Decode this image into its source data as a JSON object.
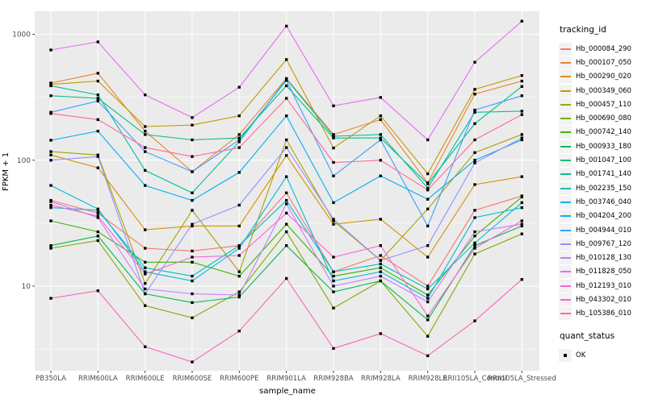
{
  "figure": {
    "y_axis_title": "FPKM + 1",
    "x_axis_title": "sample_name",
    "legend": {
      "tracking_title": "tracking_id",
      "quant_title": "quant_status",
      "quant_items": [
        {
          "label": "OK",
          "marker": "black-square"
        }
      ]
    },
    "colors": {
      "panel_background": "#EBEBEB",
      "grid_major": "#FFFFFF",
      "grid_minor": "#FFFFFF",
      "tick_label": "#4D4D4D",
      "tick_mark": "#333333",
      "marker": "#000000",
      "legend_key_background": "#F2F2F2"
    }
  },
  "chart_data": {
    "type": "line",
    "title": "",
    "xlabel": "sample_name",
    "ylabel": "FPKM + 1",
    "y_scale": "log10",
    "ylim": [
      2.1,
      1520
    ],
    "grid": true,
    "legend_position": "right",
    "y_ticks": [
      {
        "value": 10,
        "label": "10"
      },
      {
        "value": 100,
        "label": "100"
      },
      {
        "value": 1000,
        "label": "1000"
      }
    ],
    "y_minor_ticks": [
      3.162,
      31.62,
      316.2
    ],
    "categories": [
      "PB350LA",
      "RRIM600LA",
      "RRIM600LE",
      "RRIM600SE",
      "RRIM600PE",
      "RRIM901LA",
      "RRIM928BA",
      "RRIM928LA",
      "RRIM928LE",
      "RRII105LA_Control",
      "RRII105LA_Stressed"
    ],
    "marker": {
      "shape": "square",
      "color": "#000000",
      "size": 3.4,
      "meaning": "quant_status OK"
    },
    "series": [
      {
        "name": "Hb_000084_290",
        "color": "#F8766D",
        "quant_status": "OK",
        "values": [
          48,
          38,
          20,
          19,
          21,
          55,
          13,
          17.5,
          10,
          40,
          52
        ]
      },
      {
        "name": "Hb_000107_050",
        "color": "#EA8331",
        "quant_status": "OK",
        "values": [
          410,
          490,
          170,
          81,
          160,
          445,
          160,
          210,
          66,
          335,
          425
        ]
      },
      {
        "name": "Hb_000290_020",
        "color": "#D89000",
        "quant_status": "OK",
        "values": [
          110,
          87,
          28,
          30,
          30,
          109,
          31,
          34,
          17,
          64,
          74
        ]
      },
      {
        "name": "Hb_000349_060",
        "color": "#C09B00",
        "quant_status": "OK",
        "values": [
          400,
          425,
          185,
          190,
          225,
          630,
          125,
          225,
          78,
          365,
          470
        ]
      },
      {
        "name": "Hb_000457_110",
        "color": "#A3A500",
        "quant_status": "OK",
        "values": [
          117,
          110,
          10.5,
          40,
          13,
          145,
          33,
          16,
          41,
          115,
          160
        ]
      },
      {
        "name": "Hb_000690_080",
        "color": "#7CAE00",
        "quant_status": "OK",
        "values": [
          20,
          23,
          7,
          5.6,
          9,
          27,
          6.7,
          11,
          4,
          18,
          26
        ]
      },
      {
        "name": "Hb_000742_140",
        "color": "#39B600",
        "quant_status": "OK",
        "values": [
          33,
          27,
          15.5,
          15.5,
          12,
          31,
          12,
          14,
          8.5,
          25,
          51
        ]
      },
      {
        "name": "Hb_000933_180",
        "color": "#00BB4E",
        "quant_status": "OK",
        "values": [
          21,
          25,
          8.7,
          7.4,
          8.2,
          21,
          9,
          11,
          5.4,
          21,
          30
        ]
      },
      {
        "name": "Hb_001047_100",
        "color": "#00BF7D",
        "quant_status": "OK",
        "values": [
          325,
          310,
          160,
          145,
          150,
          390,
          150,
          150,
          65,
          195,
          385
        ]
      },
      {
        "name": "Hb_001741_140",
        "color": "#00C1A3",
        "quant_status": "OK",
        "values": [
          390,
          330,
          83,
          55,
          140,
          440,
          155,
          160,
          60,
          240,
          245
        ]
      },
      {
        "name": "Hb_002235_150",
        "color": "#00BFC4",
        "quant_status": "OK",
        "values": [
          42,
          40,
          14,
          12,
          21,
          48,
          13,
          15,
          9.5,
          22,
          46
        ]
      },
      {
        "name": "Hb_003746_040",
        "color": "#00BAE0",
        "quant_status": "OK",
        "values": [
          63,
          41,
          13,
          11,
          20,
          74,
          11,
          13,
          8,
          35,
          42
        ]
      },
      {
        "name": "Hb_004204_200",
        "color": "#00B0F6",
        "quant_status": "OK",
        "values": [
          144,
          170,
          63,
          48,
          80,
          225,
          46,
          75,
          49,
          100,
          145
        ]
      },
      {
        "name": "Hb_004944_010",
        "color": "#35A2FF",
        "quant_status": "OK",
        "values": [
          240,
          295,
          117,
          81,
          145,
          430,
          75,
          145,
          30,
          250,
          325
        ]
      },
      {
        "name": "Hb_009767_120",
        "color": "#9590FF",
        "quant_status": "OK",
        "values": [
          100,
          107,
          8.7,
          31,
          44,
          126,
          34,
          16,
          21,
          95,
          150
        ]
      },
      {
        "name": "Hb_010128_130",
        "color": "#C77CFF",
        "quant_status": "OK",
        "values": [
          47,
          35,
          9.5,
          8.7,
          8.5,
          45,
          10,
          12,
          7.5,
          27,
          31
        ]
      },
      {
        "name": "Hb_011828_050",
        "color": "#E76BF3",
        "quant_status": "OK",
        "values": [
          750,
          870,
          330,
          218,
          380,
          1160,
          270,
          315,
          145,
          600,
          1270
        ]
      },
      {
        "name": "Hb_012193_010",
        "color": "#FA62DB",
        "quant_status": "OK",
        "values": [
          44,
          36,
          12.5,
          17,
          17.5,
          38,
          17,
          21,
          5.8,
          20,
          33
        ]
      },
      {
        "name": "Hb_043302_010",
        "color": "#FF62BC",
        "quant_status": "OK",
        "values": [
          8,
          9.2,
          3.3,
          2.5,
          4.4,
          11.5,
          3.2,
          4.2,
          2.8,
          5.3,
          11.3
        ]
      },
      {
        "name": "Hb_105386_010",
        "color": "#FF6A98",
        "quant_status": "OK",
        "values": [
          235,
          210,
          126,
          107,
          126,
          310,
          96,
          100,
          58,
          145,
          230
        ]
      }
    ]
  }
}
